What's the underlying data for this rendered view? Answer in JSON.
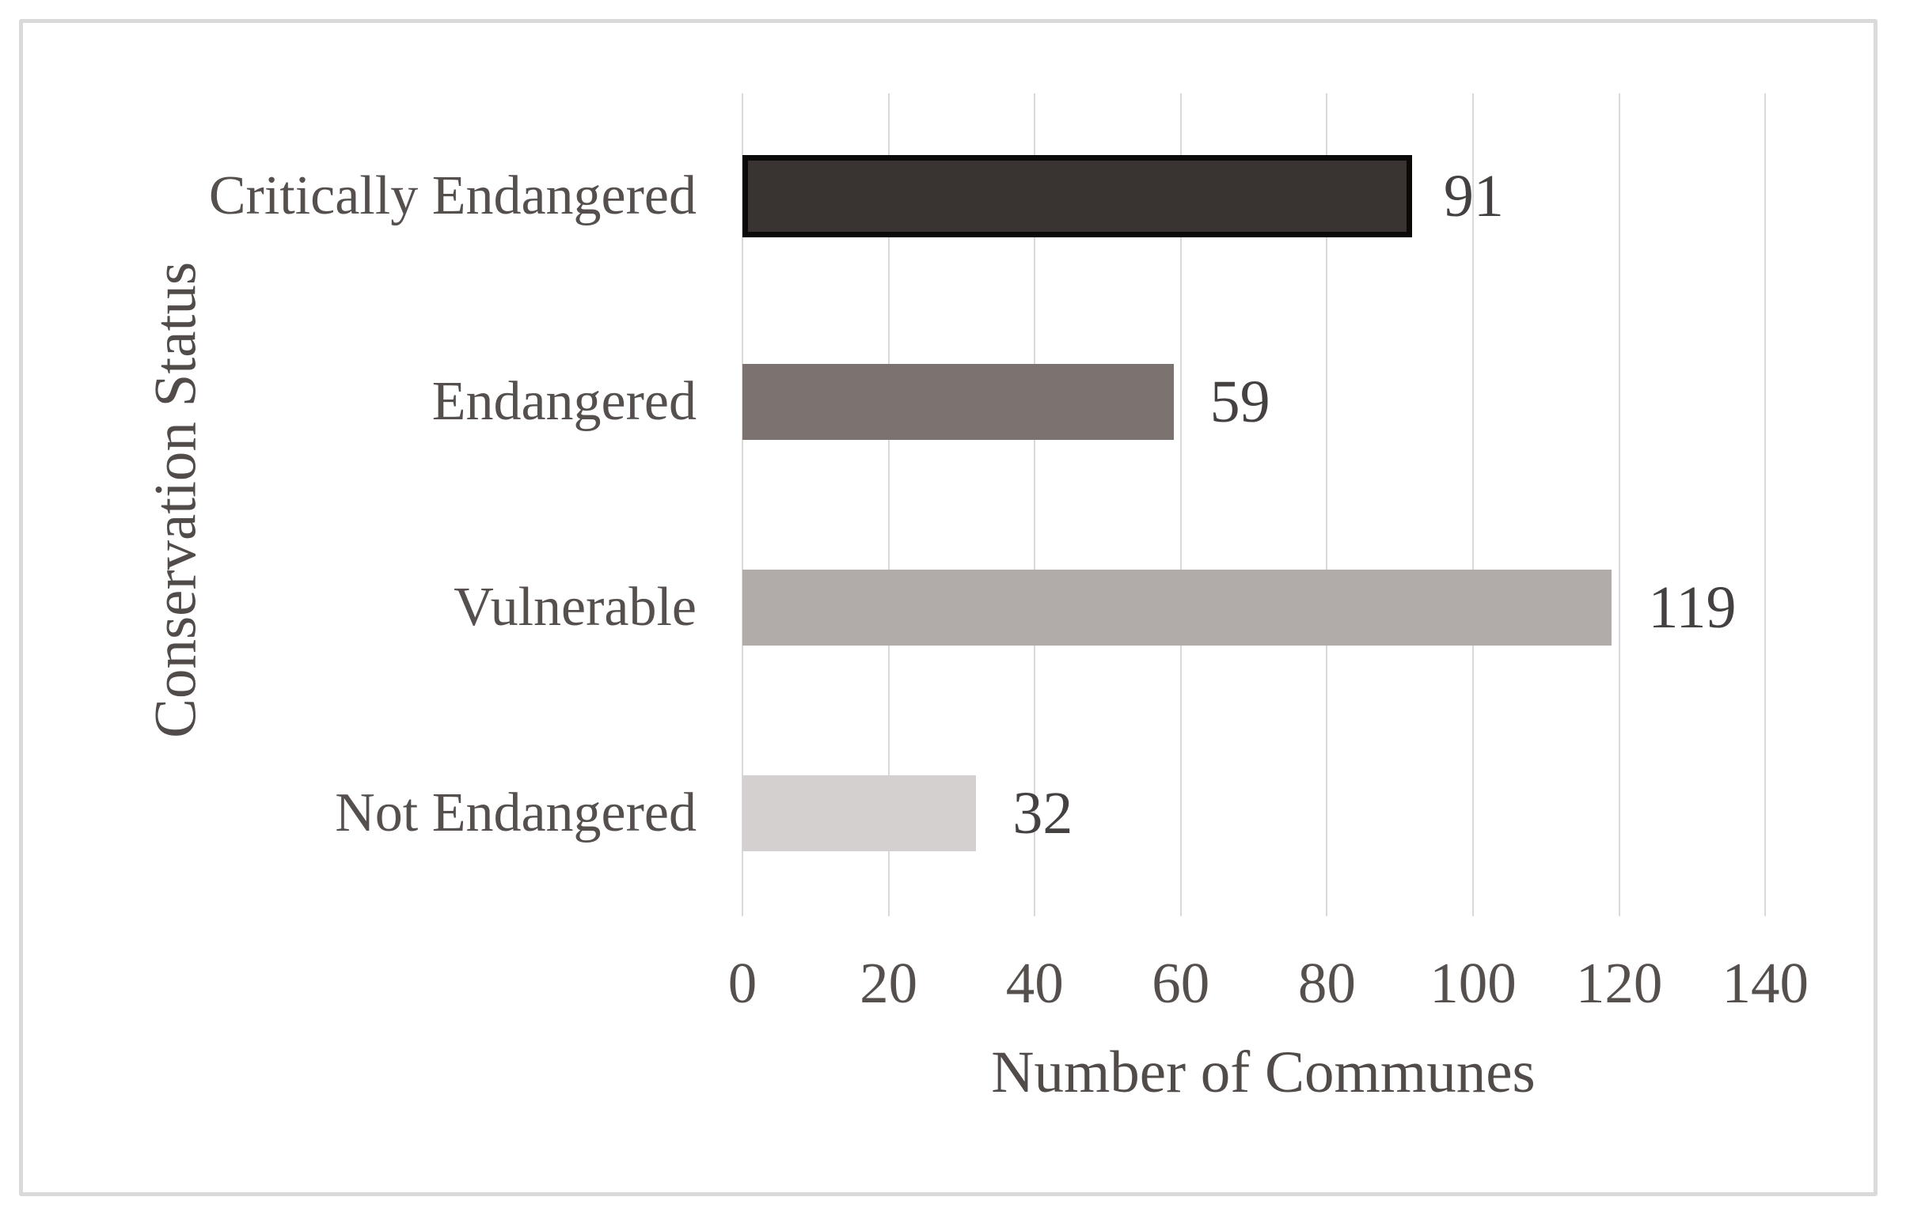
{
  "chart_data": {
    "type": "bar",
    "orientation": "horizontal",
    "title": "",
    "categories": [
      "Critically Endangered",
      "Endangered",
      "Vulnerable",
      "Not Endangered"
    ],
    "values": [
      91,
      59,
      119,
      32
    ],
    "data_labels": [
      "91",
      "59",
      "119",
      "32"
    ],
    "xlabel": "Number of Communes",
    "ylabel": "Conservation Status",
    "x_ticks": [
      0,
      20,
      40,
      60,
      80,
      100,
      120,
      140
    ],
    "xlim": [
      0,
      140
    ],
    "grid": "vertical-gridlines-on",
    "legend": "none",
    "colors": {
      "bar_fills": [
        "#393432",
        "#7A7370",
        "#B1ACA9",
        "#D3D0CF"
      ],
      "bar_borders": [
        "#0B0A09",
        "none",
        "none",
        "none"
      ],
      "gridline": "#D9D9D9",
      "frame": "#DADADA",
      "category_text": "#55504E",
      "tick_text": "#55504E",
      "data_label_text": "#454140",
      "axis_title_text": "#514C49",
      "background": "#FFFFFF"
    }
  }
}
